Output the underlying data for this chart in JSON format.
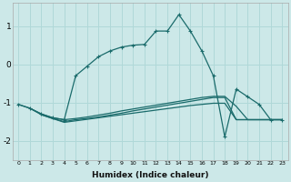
{
  "xlabel": "Humidex (Indice chaleur)",
  "bg_color": "#cce8e8",
  "line_color": "#1a6b6b",
  "grid_color": "#b0d8d8",
  "xlim": [
    -0.5,
    23.5
  ],
  "ylim": [
    -2.5,
    1.6
  ],
  "yticks": [
    -2,
    -1,
    0,
    1
  ],
  "curve_x": [
    0,
    1,
    2,
    3,
    4,
    5,
    6,
    7,
    8,
    9,
    10,
    11,
    12,
    13,
    14,
    15,
    16,
    17,
    18,
    19,
    20,
    21,
    22,
    23
  ],
  "curve_y": [
    -1.05,
    -1.15,
    -1.3,
    -1.4,
    -1.45,
    -0.3,
    -0.05,
    0.2,
    0.35,
    0.45,
    0.5,
    0.52,
    0.87,
    0.87,
    1.3,
    0.87,
    0.35,
    -0.3,
    -1.9,
    -0.65,
    -0.85,
    -1.05,
    -1.45,
    -1.45
  ],
  "flat1_x": [
    0,
    1,
    2,
    3,
    4,
    5,
    6,
    7,
    8,
    9,
    10,
    11,
    12,
    13,
    14,
    15,
    16,
    17,
    18,
    19,
    20,
    21,
    22,
    23
  ],
  "flat1_y": [
    -1.05,
    -1.15,
    -1.3,
    -1.4,
    -1.45,
    -1.42,
    -1.38,
    -1.33,
    -1.28,
    -1.22,
    -1.17,
    -1.12,
    -1.07,
    -1.02,
    -0.97,
    -0.92,
    -0.87,
    -0.84,
    -0.84,
    -1.1,
    -1.45,
    -1.45,
    -1.45,
    -1.45
  ],
  "flat2_x": [
    1,
    2,
    3,
    4,
    5,
    6,
    7,
    8,
    9,
    10,
    11,
    12,
    13,
    14,
    15,
    16,
    17,
    18,
    19,
    20,
    21,
    22,
    23
  ],
  "flat2_y": [
    -1.15,
    -1.32,
    -1.42,
    -1.5,
    -1.45,
    -1.42,
    -1.38,
    -1.33,
    -1.28,
    -1.22,
    -1.17,
    -1.12,
    -1.07,
    -1.02,
    -0.97,
    -0.92,
    -0.87,
    -0.87,
    -1.45,
    -1.45,
    -1.45,
    -1.45,
    -1.45
  ],
  "flat3_x": [
    2,
    3,
    4,
    5,
    6,
    7,
    8,
    9,
    10,
    11,
    12,
    13,
    14,
    15,
    16,
    17,
    18,
    19,
    20,
    21,
    22,
    23
  ],
  "flat3_y": [
    -1.32,
    -1.42,
    -1.52,
    -1.48,
    -1.44,
    -1.4,
    -1.36,
    -1.32,
    -1.28,
    -1.24,
    -1.2,
    -1.16,
    -1.12,
    -1.08,
    -1.05,
    -1.02,
    -1.02,
    -1.45,
    -1.45,
    -1.45,
    -1.45,
    -1.45
  ]
}
